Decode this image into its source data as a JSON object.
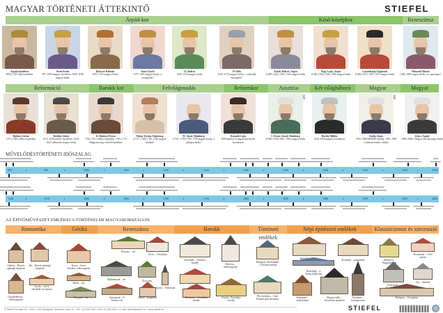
{
  "header": {
    "title": "MAGYAR TÖRTÉNETI ÁTTEKINTŐ",
    "brand": "STIEFEL"
  },
  "colors": {
    "period_band": "#a9d08e",
    "period_band_dark": "#8cc56b",
    "timeline_bar": "#7ec8e3",
    "architecture_band": "#f6b26b",
    "architecture_band_dark": "#f0a04b"
  },
  "rulers_row1": {
    "periods": [
      "Árpád-kor",
      "Késő-középkor",
      "Reneszánsz"
    ],
    "people": [
      {
        "name": "Árpád fejedelem",
        "info": "895(?)–907 után fejedelem"
      },
      {
        "name": "Szent István",
        "info": "997–1000 magyar fejedelem, 1000–1038 magyar király"
      },
      {
        "name": "Könyves Kálmán",
        "info": "1095–1116 magyar király"
      },
      {
        "name": "Szent László",
        "info": "1077–1095 magyar király, a „lovagkirály”"
      },
      {
        "name": "II. András",
        "info": "1205–1235 magyar király"
      },
      {
        "name": "IV. Béla",
        "info": "1235–1270 magyar király, a „második honalapító”"
      },
      {
        "name": "Károly Róbert, Anjou",
        "info": "(1288–1342) 1301–1342 magyar király"
      },
      {
        "name": "Nagy Lajos, Anjou",
        "info": "(1326–1382) 1342–1382 magyar király"
      },
      {
        "name": "Luxemburgi Zsigmond",
        "info": "(1368–1437) 1387–1437 magyar király"
      },
      {
        "name": "Hunyadi Mátyás",
        "info": "1458–1490 magyar király, az „igazságos”"
      }
    ]
  },
  "rulers_row2": {
    "periods": [
      "Reformáció",
      "Barokk kor",
      "Felvilágosodás",
      "Reformkor",
      "Ausztria-Magyarország",
      "Két világháború között",
      "Magyar Népköztársaság",
      "Magyar Köztársaság"
    ],
    "people": [
      {
        "name": "Báthory István",
        "info": "1571–1586 erdélyi fejedelem"
      },
      {
        "name": "Bethlen Gábor",
        "info": "1613–1629 erdélyi fejedelem, 1620–1621 választott magyar király"
      },
      {
        "name": "II. Rákóczi Ferenc",
        "info": "1704–1711 erdélyi fejedelem, 1705–1711 Magyarország vezérlő fejedelme"
      },
      {
        "name": "Mária Terézia, Habsburg",
        "info": "(1717–1780) 1740–1780 magyar királynő"
      },
      {
        "name": "II. József, Habsburg",
        "info": "(1741–1790) 1780–1790 magyar király, a „kalapos király”"
      },
      {
        "name": "Kossuth Lajos",
        "info": "1849 áprilisa és augusztusa között kormányzó"
      },
      {
        "name": "I. Ferenc József, Habsburg",
        "info": "(1830–1916) 1867–1916 magyar király"
      },
      {
        "name": "Horthy Miklós",
        "info": "1920–1944 magyar kormányzó"
      },
      {
        "name": "Kádár János",
        "info": "1956–1988 MSZMP főtitkár, 1961–1965 a minisztertanács elnöke"
      },
      {
        "name": "Göncz Árpád",
        "info": "1990–2000 a Magyar Köztársaság elnöke"
      }
    ]
  },
  "timeline": {
    "title": "MŰVELŐDÉSTÖRTÉNETI IDŐSZALAG",
    "row1_ticks": [
      "900",
      "950",
      "1000",
      "1050",
      "1100",
      "1150",
      "1200",
      "1250",
      "1300",
      "1350",
      "1400",
      "1500"
    ],
    "row2_ticks": [
      "1500",
      "1550",
      "1600",
      "1650",
      "1700",
      "1750",
      "1800",
      "1850",
      "1900",
      "1950",
      "2000",
      "2020"
    ]
  },
  "architecture": {
    "title": "AZ ÉPÍTŐMŰVÉSZET EMLÉKEI A TÖRTÉNELMI MAGYARORSZÁGON",
    "styles": [
      "Romantika",
      "Gótika",
      "Reneszánsz",
      "Barokk",
      "Történeti emlékek",
      "Népi építészeti emlékek",
      "Klasszicizmus és szecesszió"
    ],
    "buildings": [
      "Lébény – Bencés apátsági templom",
      "Ják – Bencés apátsági templom",
      "Gyulafehérvár – Székesegyház",
      "Gyula – vár (a síkvidéki vár típusa)",
      "Kassa – Szent Erzsébet székesegyház",
      "Siklós – vár",
      "Visegrád – vár",
      "Pozsony – vár",
      "Lőcse – Városháza",
      "Vajdahunyad – vár",
      "Árva vára",
      "Sopron – Tűztorony",
      "Sárospatak – A Perényi-vár",
      "Bártfa – polgárház",
      "Keszthely – Festetics kastély",
      "Kalocsa – Székesegyház",
      "Gödöllő – Grassalkovich kastély",
      "Fertőd – Esterházy kastély",
      "Kismarton – Esterházy kastély",
      "Budapest, Rózsadomb – Gül baba türbéje",
      "Pécs belváros – Gázi Kászim pasa dzsámija",
      "Hollókő – falukép",
      "Hortobágy – a Kilenclyukú híd",
      "Szekszárd – székelykapu",
      "Magyarvalkó – református templom",
      "Kodolány – parasztház",
      "Nyírbátor – harangtorony",
      "Debrecen – Nagytemplom",
      "Esztergom – Főszékesegyház",
      "Budapest – Országház",
      "Kecskemét – Cifra palota",
      "Vác – diadalív"
    ]
  },
  "footer": {
    "text": "© Stiefel Eurocart Kft., 2013 • 1103 Budapest, Kismarton utca 11. • Tel.: (1) 433-2000 • Fax: (1) 433-2001 • e-mail: stiefel@stiefel.hu • www.stiefel.hu"
  }
}
